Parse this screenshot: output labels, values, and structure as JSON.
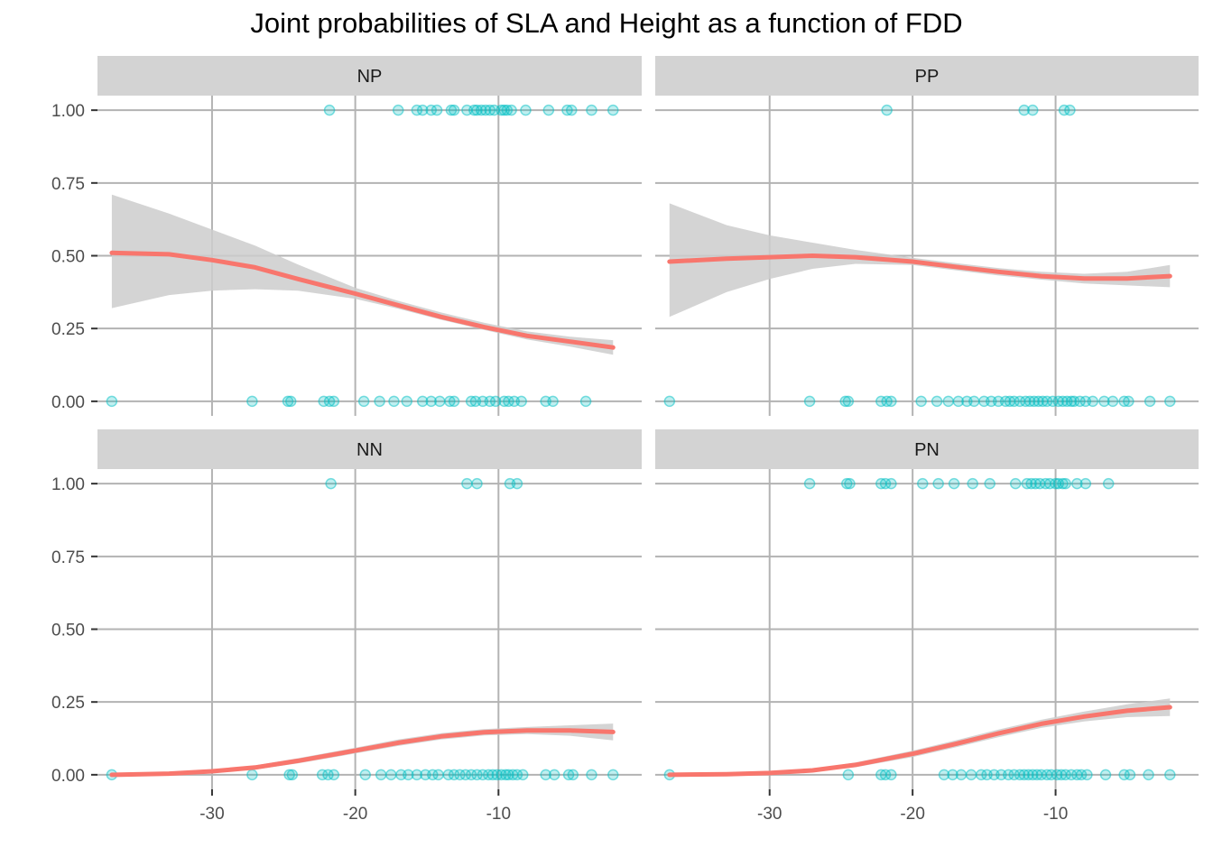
{
  "chart_data": {
    "type": "scatter",
    "title": "Joint probabilities of SLA and Height as a function of FDD",
    "xlabel": "",
    "ylabel": "",
    "xlim": [
      -38,
      0
    ],
    "ylim": [
      -0.05,
      1.05
    ],
    "x_ticks": [
      -30,
      -20,
      -10
    ],
    "y_ticks": [
      0,
      0.25,
      0.5,
      0.75,
      1
    ],
    "x_tick_labels": [
      "-30",
      "-20",
      "-10"
    ],
    "y_tick_labels": [
      "0.00",
      "0.25",
      "0.50",
      "0.75",
      "1.00"
    ],
    "grid": true,
    "point_color": "#00BFC4",
    "line_color": "#F8766D",
    "ribbon_color": "#CCCCCC",
    "strip_color": "#D3D3D3",
    "grid_color": "#B3B3B3",
    "panels": [
      {
        "label": "NP",
        "points": {
          "y1": [
            -21.8,
            -17,
            -15.7,
            -15.3,
            -14.7,
            -14.3,
            -13.3,
            -13.1,
            -12.2,
            -11.7,
            -11.5,
            -11.2,
            -10.9,
            -10.6,
            -10.3,
            -9.8,
            -9.6,
            -9.4,
            -9.1,
            -8.1,
            -6.5,
            -5.2,
            -4.9,
            -3.5,
            -2
          ],
          "y0": [
            -37,
            -27.2,
            -24.7,
            -24.5,
            -22.2,
            -21.8,
            -21.5,
            -19.4,
            -18.3,
            -17.3,
            -16.4,
            -15.3,
            -14.7,
            -14.1,
            -13.4,
            -13.1,
            -11.9,
            -11.6,
            -11.1,
            -10.6,
            -10.2,
            -9.6,
            -9.3,
            -8.9,
            -8.4,
            -6.7,
            -6.2,
            -3.9
          ]
        },
        "curve": {
          "x": [
            -37,
            -33,
            -30,
            -27,
            -24,
            -20,
            -17,
            -14,
            -11,
            -8,
            -5,
            -2
          ],
          "y": [
            0.51,
            0.505,
            0.485,
            0.46,
            0.42,
            0.37,
            0.33,
            0.29,
            0.255,
            0.225,
            0.205,
            0.185
          ],
          "lower": [
            0.32,
            0.365,
            0.38,
            0.385,
            0.38,
            0.352,
            0.318,
            0.28,
            0.245,
            0.212,
            0.188,
            0.16
          ],
          "upper": [
            0.71,
            0.645,
            0.59,
            0.535,
            0.47,
            0.39,
            0.345,
            0.305,
            0.27,
            0.24,
            0.222,
            0.21
          ]
        }
      },
      {
        "label": "PP",
        "points": {
          "y1": [
            -21.8,
            -12.2,
            -11.6,
            -9.4,
            -9
          ],
          "y0": [
            -37,
            -27.2,
            -24.7,
            -24.5,
            -22.2,
            -21.8,
            -21.5,
            -19.4,
            -18.3,
            -17.5,
            -16.8,
            -16.2,
            -15.7,
            -15,
            -14.5,
            -14,
            -13.5,
            -13.2,
            -12.9,
            -12.5,
            -12.1,
            -11.8,
            -11.5,
            -11.2,
            -10.9,
            -10.6,
            -10.2,
            -9.8,
            -9.5,
            -9.2,
            -8.9,
            -8.7,
            -8.3,
            -7.9,
            -7.4,
            -6.6,
            -6,
            -5.2,
            -4.9,
            -3.4,
            -2
          ]
        },
        "curve": {
          "x": [
            -37,
            -33,
            -30,
            -27,
            -24,
            -20,
            -17,
            -14,
            -11,
            -8,
            -5,
            -2
          ],
          "y": [
            0.48,
            0.49,
            0.495,
            0.5,
            0.495,
            0.48,
            0.462,
            0.445,
            0.43,
            0.422,
            0.422,
            0.43
          ],
          "lower": [
            0.29,
            0.375,
            0.42,
            0.455,
            0.472,
            0.468,
            0.45,
            0.432,
            0.418,
            0.405,
            0.398,
            0.392
          ],
          "upper": [
            0.68,
            0.605,
            0.57,
            0.545,
            0.52,
            0.493,
            0.475,
            0.458,
            0.445,
            0.438,
            0.445,
            0.468
          ]
        }
      },
      {
        "label": "NN",
        "points": {
          "y1": [
            -21.7,
            -12.2,
            -11.5,
            -9.2,
            -8.7
          ],
          "y0": [
            -37,
            -27.2,
            -24.6,
            -24.4,
            -22.3,
            -21.9,
            -21.5,
            -19.3,
            -18.2,
            -17.5,
            -16.8,
            -16.3,
            -15.7,
            -15.1,
            -14.6,
            -14.2,
            -13.5,
            -13.1,
            -12.7,
            -12.3,
            -11.9,
            -11.5,
            -11.1,
            -10.7,
            -10.4,
            -10.1,
            -9.8,
            -9.5,
            -9.3,
            -9,
            -8.7,
            -8.3,
            -6.7,
            -6.1,
            -5.1,
            -4.8,
            -3.5,
            -2
          ]
        },
        "curve": {
          "x": [
            -37,
            -33,
            -30,
            -27,
            -24,
            -20,
            -17,
            -14,
            -11,
            -8,
            -5,
            -2
          ],
          "y": [
            0,
            0.004,
            0.012,
            0.025,
            0.048,
            0.083,
            0.11,
            0.132,
            0.146,
            0.152,
            0.152,
            0.147
          ],
          "lower": [
            0,
            0.002,
            0.008,
            0.018,
            0.039,
            0.073,
            0.099,
            0.121,
            0.135,
            0.14,
            0.134,
            0.118
          ],
          "upper": [
            0,
            0.006,
            0.016,
            0.032,
            0.057,
            0.093,
            0.121,
            0.143,
            0.157,
            0.164,
            0.17,
            0.176
          ]
        }
      },
      {
        "label": "PN",
        "points": {
          "y1": [
            -27.2,
            -24.6,
            -24.4,
            -22.2,
            -21.9,
            -21.5,
            -19.3,
            -18.2,
            -17.1,
            -15.8,
            -14.6,
            -12.8,
            -12,
            -11.7,
            -11.4,
            -11.1,
            -10.7,
            -10.4,
            -10,
            -9.8,
            -9.5,
            -9.3,
            -8.5,
            -7.9,
            -6.3
          ],
          "y0": [
            -37,
            -24.5,
            -22.2,
            -21.9,
            -21.5,
            -17.8,
            -17.2,
            -16.6,
            -15.9,
            -15.2,
            -14.8,
            -14.3,
            -13.8,
            -13.3,
            -12.9,
            -12.5,
            -12.2,
            -11.9,
            -11.6,
            -11.3,
            -11,
            -10.6,
            -10.3,
            -9.9,
            -9.6,
            -9.3,
            -8.9,
            -8.5,
            -8.2,
            -7.8,
            -6.5,
            -5.2,
            -4.8,
            -3.5,
            -2
          ]
        },
        "curve": {
          "x": [
            -37,
            -33,
            -30,
            -27,
            -24,
            -20,
            -17,
            -14,
            -11,
            -8,
            -5,
            -2
          ],
          "y": [
            0,
            0.002,
            0.006,
            0.015,
            0.034,
            0.072,
            0.106,
            0.142,
            0.175,
            0.2,
            0.22,
            0.232
          ],
          "lower": [
            0,
            0.001,
            0.003,
            0.01,
            0.026,
            0.061,
            0.094,
            0.129,
            0.161,
            0.183,
            0.198,
            0.202
          ],
          "upper": [
            0,
            0.003,
            0.009,
            0.02,
            0.042,
            0.083,
            0.118,
            0.155,
            0.189,
            0.217,
            0.242,
            0.262
          ]
        }
      }
    ]
  }
}
